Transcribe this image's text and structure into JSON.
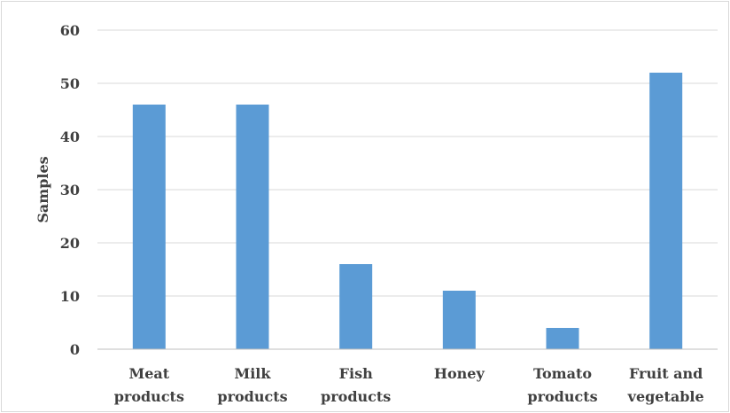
{
  "chart_data": {
    "type": "bar",
    "title": "",
    "xlabel": "",
    "ylabel": "Samples",
    "ylim": [
      0,
      60
    ],
    "yticks": [
      0,
      10,
      20,
      30,
      40,
      50,
      60
    ],
    "grid": true,
    "categories": [
      [
        "Meat",
        "products"
      ],
      [
        "Milk",
        "products"
      ],
      [
        "Fish",
        "products"
      ],
      [
        "Honey"
      ],
      [
        "Tomato",
        "products"
      ],
      [
        "Fruit and",
        "vegetable"
      ]
    ],
    "values": [
      46,
      46,
      16,
      11,
      4,
      52
    ],
    "colors": {
      "bar": "#5b9bd5",
      "grid": "#d9d9d9",
      "axis": "#bfbfbf",
      "text": "#404040"
    }
  }
}
